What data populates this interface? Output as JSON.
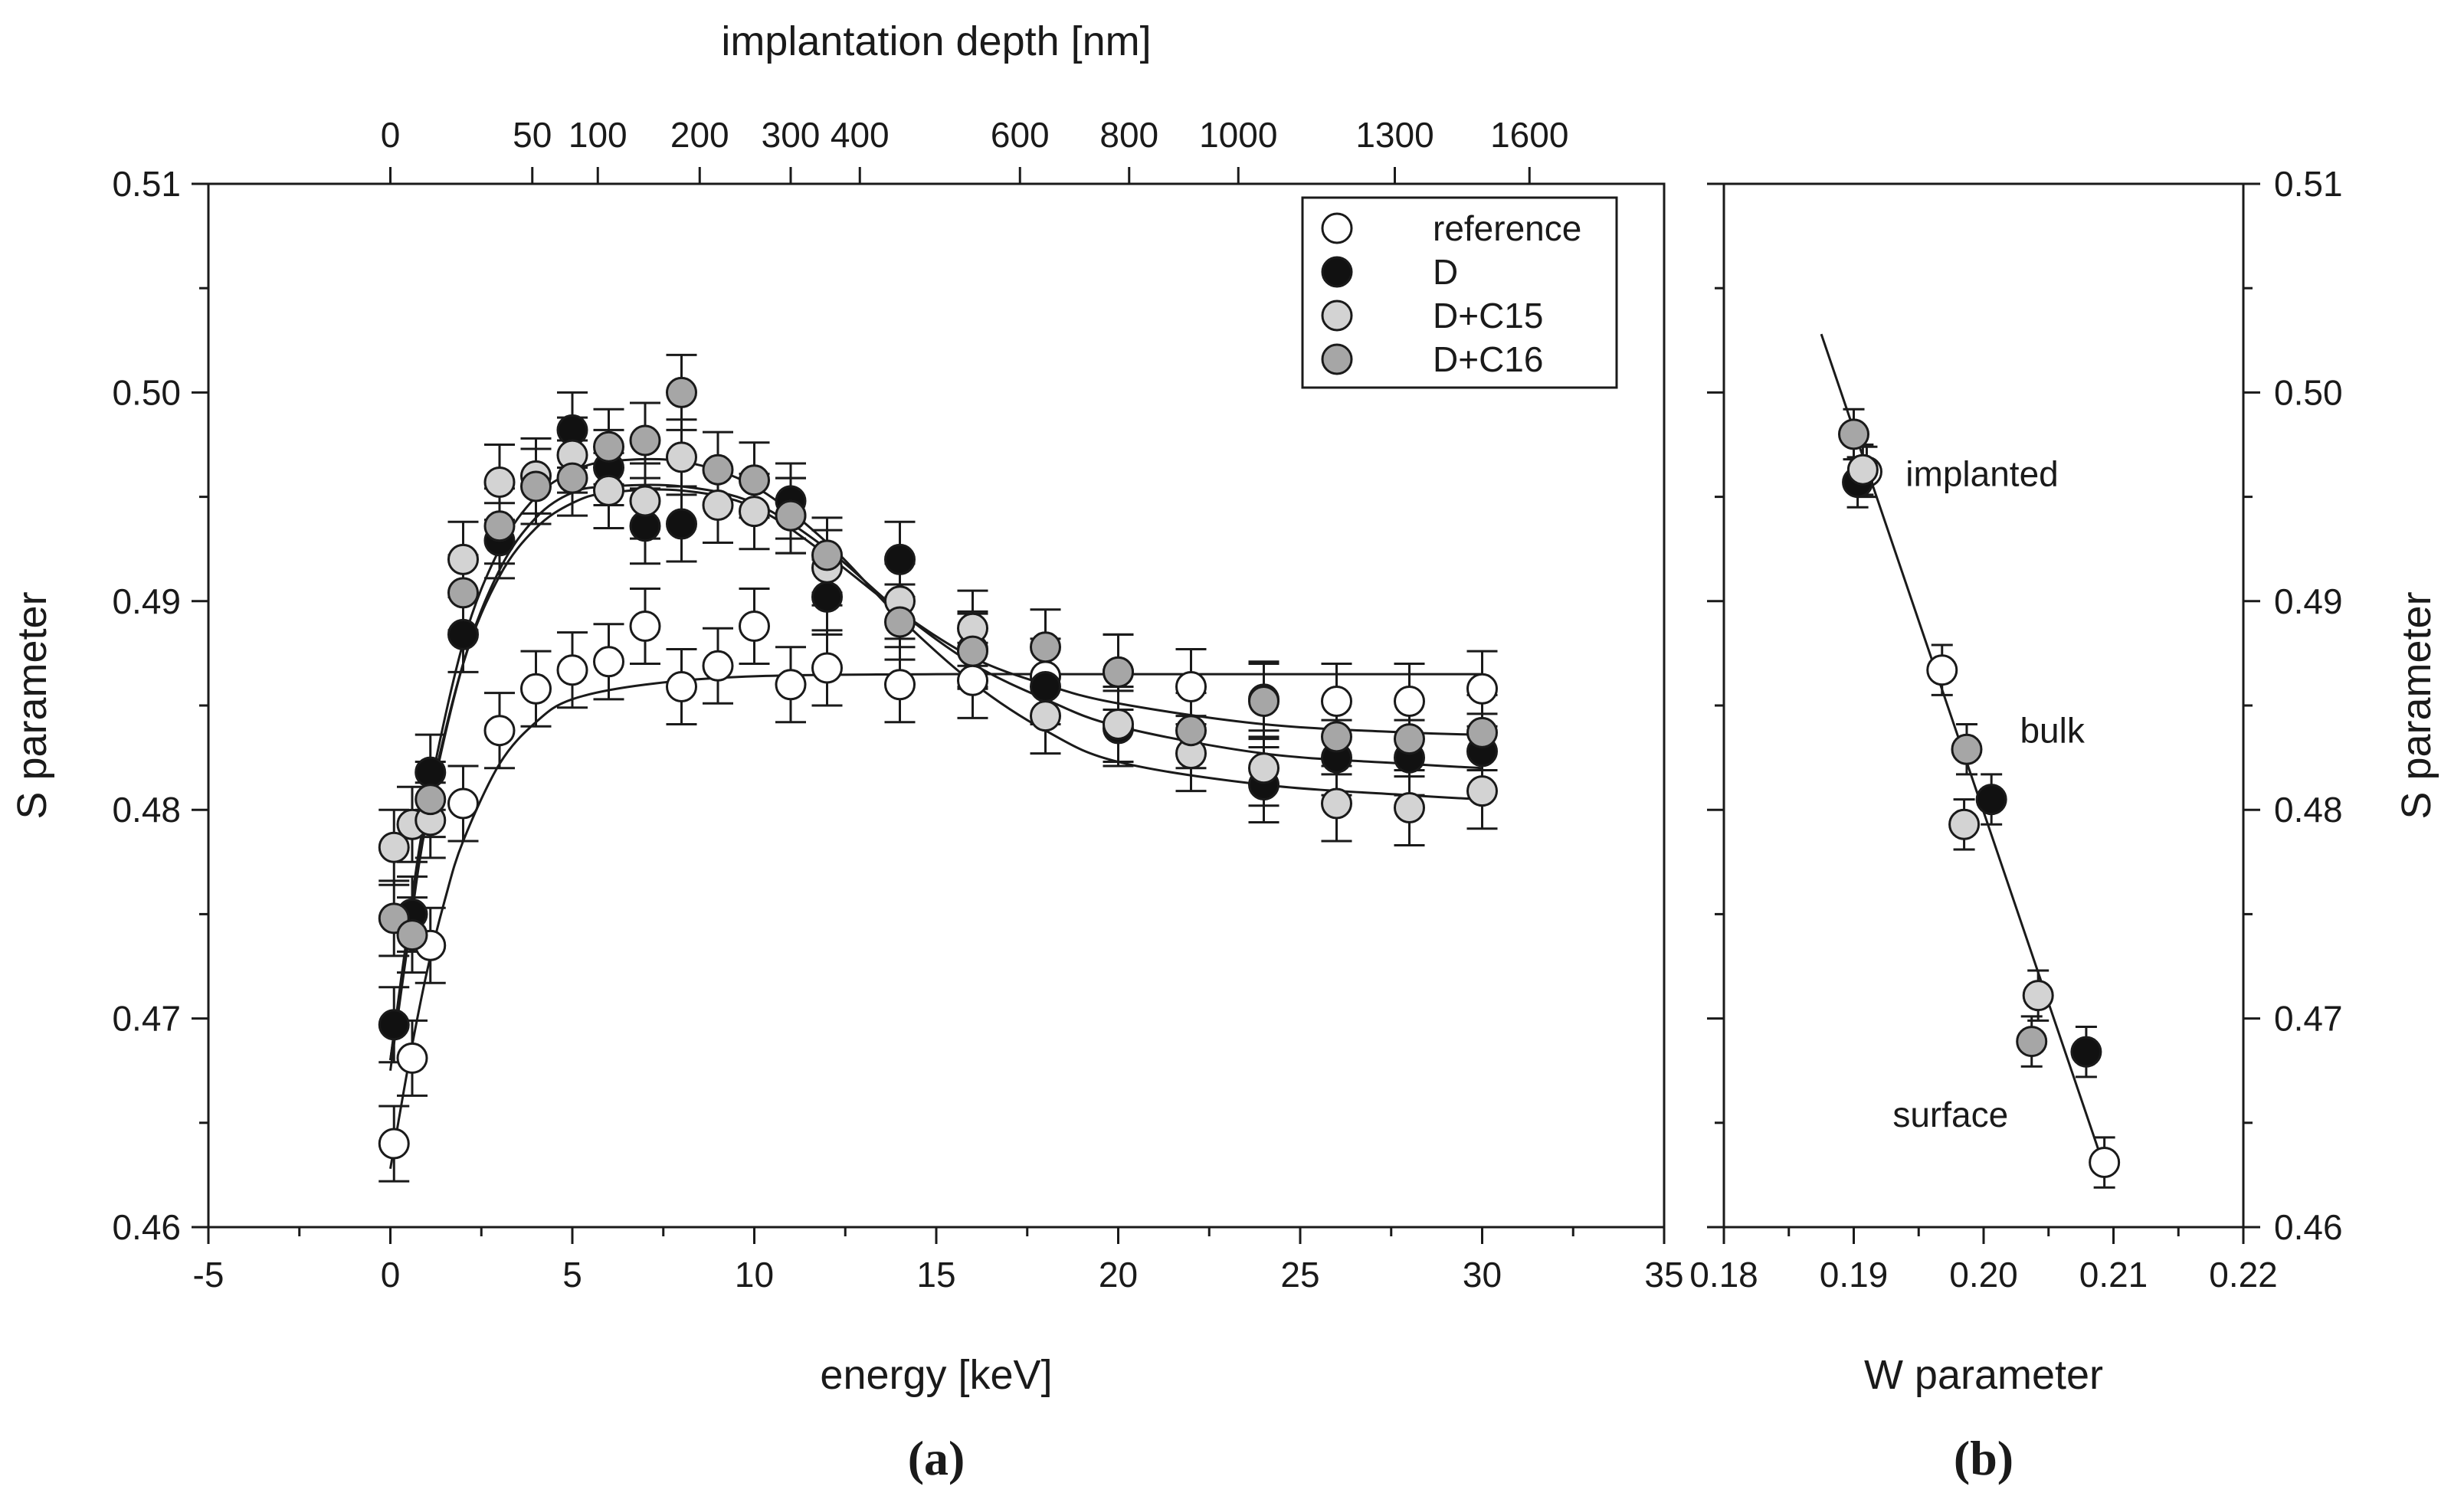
{
  "chart_data": [
    {
      "panel": "a",
      "panel_label": "(a)",
      "type": "scatter",
      "xlabel": "energy [keV]",
      "ylabel": "S parameter",
      "top_axis_label": "implantation depth [nm]",
      "xlim": [
        -5,
        35
      ],
      "ylim": [
        0.46,
        0.51
      ],
      "x_tick_labels": [
        "-5",
        "0",
        "5",
        "10",
        "15",
        "20",
        "25",
        "30",
        "35"
      ],
      "y_tick_labels": [
        "0.46",
        "0.47",
        "0.48",
        "0.49",
        "0.50",
        "0.51"
      ],
      "top_ticks": [
        {
          "label": "0",
          "energy": 0
        },
        {
          "label": "50",
          "energy": 3.9
        },
        {
          "label": "100",
          "energy": 5.7
        },
        {
          "label": "200",
          "energy": 8.5
        },
        {
          "label": "300",
          "energy": 11.0
        },
        {
          "label": "400",
          "energy": 12.9
        },
        {
          "label": "600",
          "energy": 17.3
        },
        {
          "label": "800",
          "energy": 20.3
        },
        {
          "label": "1000",
          "energy": 23.3
        },
        {
          "label": "1300",
          "energy": 27.6
        },
        {
          "label": "1600",
          "energy": 31.3
        }
      ],
      "legend": [
        "reference",
        "D",
        "D+C15",
        "D+C16"
      ],
      "legend_position": "top-right",
      "series": [
        {
          "name": "reference",
          "color": "#ffffff",
          "x": [
            0.1,
            0.6,
            1.1,
            2,
            3,
            4,
            5,
            6,
            7,
            8,
            9,
            10,
            11,
            12,
            14,
            16,
            18,
            20,
            22,
            24,
            26,
            28,
            30
          ],
          "y": [
            0.464,
            0.4681,
            0.4735,
            0.4803,
            0.4838,
            0.4858,
            0.4867,
            0.4871,
            0.4888,
            0.4859,
            0.4869,
            0.4888,
            0.486,
            0.4868,
            0.486,
            0.4862,
            0.4864,
            0.4866,
            0.4859,
            0.4853,
            0.4852,
            0.4852,
            0.4858
          ],
          "err": 0.0018,
          "fit": [
            [
              0,
              0.4628
            ],
            [
              0.5,
              0.4678
            ],
            [
              1,
              0.4722
            ],
            [
              1.5,
              0.4757
            ],
            [
              2,
              0.4785
            ],
            [
              3,
              0.4822
            ],
            [
              4,
              0.4842
            ],
            [
              5,
              0.4853
            ],
            [
              7,
              0.486
            ],
            [
              10,
              0.4864
            ],
            [
              15,
              0.4865
            ],
            [
              20,
              0.4865
            ],
            [
              30,
              0.4865
            ]
          ]
        },
        {
          "name": "D",
          "color": "#111111",
          "x": [
            0.1,
            0.6,
            1.1,
            2,
            3,
            5,
            6,
            7,
            8,
            11,
            12,
            14,
            16,
            18,
            20,
            24,
            26,
            28,
            30
          ],
          "y": [
            0.4697,
            0.475,
            0.4818,
            0.4884,
            0.4929,
            0.4982,
            0.4964,
            0.4936,
            0.4937,
            0.4948,
            0.4902,
            0.492,
            0.4877,
            0.4859,
            0.4839,
            0.4812,
            0.4825,
            0.4825,
            0.4828
          ],
          "err": 0.0018,
          "fit": [
            [
              0,
              0.4675
            ],
            [
              0.5,
              0.4738
            ],
            [
              1,
              0.4795
            ],
            [
              2,
              0.487
            ],
            [
              3,
              0.4915
            ],
            [
              4,
              0.494
            ],
            [
              5,
              0.4952
            ],
            [
              6,
              0.4955
            ],
            [
              8,
              0.4955
            ],
            [
              10,
              0.4947
            ],
            [
              12,
              0.4925
            ],
            [
              14,
              0.4895
            ],
            [
              16,
              0.487
            ],
            [
              18,
              0.4853
            ],
            [
              20,
              0.484
            ],
            [
              24,
              0.4827
            ],
            [
              28,
              0.4822
            ],
            [
              30,
              0.482
            ]
          ]
        },
        {
          "name": "D+C15",
          "color": "#d3d3d3",
          "x": [
            0.1,
            0.6,
            1.1,
            2,
            3,
            4,
            5,
            6,
            7,
            8,
            9,
            10,
            11,
            12,
            14,
            16,
            18,
            20,
            22,
            24,
            26,
            28,
            30
          ],
          "y": [
            0.4782,
            0.4793,
            0.4795,
            0.492,
            0.4957,
            0.496,
            0.497,
            0.4953,
            0.4948,
            0.4969,
            0.4946,
            0.4943,
            0.4941,
            0.4916,
            0.49,
            0.4887,
            0.4845,
            0.4841,
            0.4827,
            0.482,
            0.4803,
            0.4801,
            0.4809
          ],
          "err": 0.0018,
          "fit": [
            [
              0,
              0.468
            ],
            [
              0.5,
              0.4745
            ],
            [
              1,
              0.4802
            ],
            [
              2,
              0.488
            ],
            [
              3,
              0.4925
            ],
            [
              4,
              0.495
            ],
            [
              5,
              0.4962
            ],
            [
              6,
              0.4967
            ],
            [
              8,
              0.4967
            ],
            [
              10,
              0.4955
            ],
            [
              12,
              0.4928
            ],
            [
              14,
              0.4892
            ],
            [
              16,
              0.4861
            ],
            [
              18,
              0.4838
            ],
            [
              20,
              0.4823
            ],
            [
              24,
              0.4812
            ],
            [
              28,
              0.4807
            ],
            [
              30,
              0.4805
            ]
          ]
        },
        {
          "name": "D+C16",
          "color": "#a6a6a6",
          "x": [
            0.1,
            0.6,
            1.1,
            2,
            3,
            4,
            5,
            6,
            7,
            8,
            9,
            10,
            11,
            12,
            14,
            16,
            18,
            20,
            22,
            24,
            26,
            28,
            30
          ],
          "y": [
            0.4748,
            0.474,
            0.4805,
            0.4904,
            0.4936,
            0.4955,
            0.4959,
            0.4974,
            0.4977,
            0.5,
            0.4963,
            0.4958,
            0.4941,
            0.4922,
            0.489,
            0.4876,
            0.4878,
            0.4866,
            0.4838,
            0.4852,
            0.4835,
            0.4834,
            0.4837
          ],
          "err": 0.0018,
          "fit": [
            [
              0,
              0.468
            ],
            [
              0.5,
              0.4742
            ],
            [
              1,
              0.4798
            ],
            [
              2,
              0.487
            ],
            [
              3,
              0.4912
            ],
            [
              4,
              0.4935
            ],
            [
              5,
              0.4947
            ],
            [
              6,
              0.4952
            ],
            [
              8,
              0.4953
            ],
            [
              10,
              0.4945
            ],
            [
              12,
              0.4922
            ],
            [
              14,
              0.4895
            ],
            [
              16,
              0.4873
            ],
            [
              18,
              0.486
            ],
            [
              20,
              0.4851
            ],
            [
              24,
              0.4841
            ],
            [
              28,
              0.4837
            ],
            [
              30,
              0.4836
            ]
          ]
        }
      ]
    },
    {
      "panel": "b",
      "panel_label": "(b)",
      "type": "scatter",
      "xlabel": "W parameter",
      "ylabel": "S parameter",
      "xlim": [
        0.18,
        0.22
      ],
      "ylim": [
        0.46,
        0.51
      ],
      "x_tick_labels": [
        "0.18",
        "0.19",
        "0.20",
        "0.21",
        "0.22"
      ],
      "y_tick_labels": [
        "0.46",
        "0.47",
        "0.48",
        "0.49",
        "0.50",
        "0.51"
      ],
      "annotations": [
        "implanted",
        "bulk",
        "surface"
      ],
      "fit_line": [
        [
          0.1875,
          0.5028
        ],
        [
          0.2095,
          0.4625
        ]
      ],
      "xerr": 0.0008,
      "yerr": 0.0012,
      "points": [
        {
          "series": "reference",
          "color": "#ffffff",
          "w": 0.191,
          "s": 0.4962
        },
        {
          "series": "reference",
          "color": "#ffffff",
          "w": 0.1968,
          "s": 0.4867
        },
        {
          "series": "reference",
          "color": "#ffffff",
          "w": 0.2093,
          "s": 0.4631
        },
        {
          "series": "D",
          "color": "#111111",
          "w": 0.1903,
          "s": 0.4957
        },
        {
          "series": "D",
          "color": "#111111",
          "w": 0.2006,
          "s": 0.4805
        },
        {
          "series": "D",
          "color": "#111111",
          "w": 0.2079,
          "s": 0.4684
        },
        {
          "series": "D+C15",
          "color": "#d3d3d3",
          "w": 0.1907,
          "s": 0.4963
        },
        {
          "series": "D+C15",
          "color": "#d3d3d3",
          "w": 0.1985,
          "s": 0.4793
        },
        {
          "series": "D+C15",
          "color": "#d3d3d3",
          "w": 0.2042,
          "s": 0.4711
        },
        {
          "series": "D+C16",
          "color": "#a6a6a6",
          "w": 0.19,
          "s": 0.498
        },
        {
          "series": "D+C16",
          "color": "#a6a6a6",
          "w": 0.1987,
          "s": 0.4829
        },
        {
          "series": "D+C16",
          "color": "#a6a6a6",
          "w": 0.2037,
          "s": 0.4689
        }
      ]
    }
  ]
}
